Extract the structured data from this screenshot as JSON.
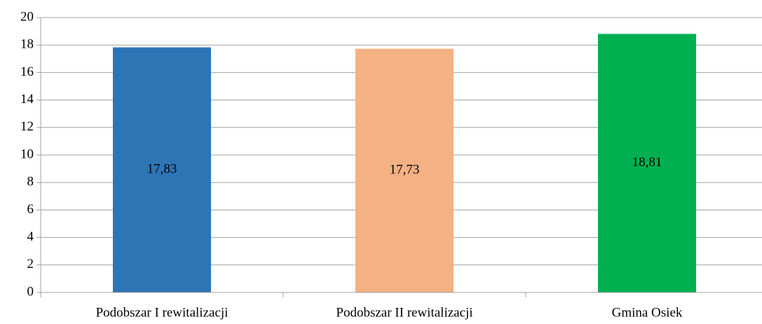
{
  "chart_data": {
    "type": "bar",
    "categories": [
      "Podobszar I rewitalizacji",
      "Podobszar II rewitalizacji",
      "Gmina Osiek"
    ],
    "values": [
      17.83,
      17.73,
      18.81
    ],
    "value_labels": [
      "17,83",
      "17,73",
      "18,81"
    ],
    "colors": [
      "#2e75b6",
      "#f4b183",
      "#00b050"
    ],
    "ylim": [
      0,
      20
    ],
    "yticks": [
      0,
      2,
      4,
      6,
      8,
      10,
      12,
      14,
      16,
      18,
      20
    ],
    "grid": true
  }
}
